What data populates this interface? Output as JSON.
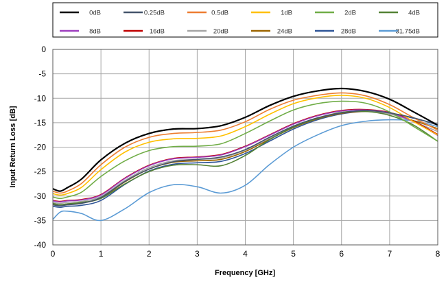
{
  "chart_data": {
    "type": "line",
    "xlabel": "Frequency [GHz]",
    "ylabel": "Input Return Loss [dB]",
    "xlim": [
      0,
      8
    ],
    "ylim": [
      -40,
      0
    ],
    "x_ticks": [
      "0",
      "1",
      "2",
      "3",
      "4",
      "5",
      "6",
      "7",
      "8"
    ],
    "y_ticks": [
      "0",
      "-5",
      "-10",
      "-15",
      "-20",
      "-25",
      "-30",
      "-35",
      "-40"
    ],
    "grid": true,
    "legend_position": "top",
    "series": [
      {
        "name": "0dB",
        "color": "#000000",
        "x": [
          0,
          0.15,
          0.3,
          0.6,
          1,
          1.5,
          2,
          2.5,
          3,
          3.5,
          4,
          4.5,
          5,
          5.5,
          6,
          6.5,
          7,
          7.5,
          8
        ],
        "y": [
          -28.5,
          -29,
          -28.3,
          -26.5,
          -22.6,
          -19.2,
          -17.2,
          -16.3,
          -16.2,
          -15.6,
          -13.9,
          -11.5,
          -9.6,
          -8.5,
          -8.0,
          -8.6,
          -10.2,
          -12.8,
          -15.5
        ]
      },
      {
        "name": "0.25dB",
        "color": "#44546a",
        "x": [
          0,
          0.15,
          0.3,
          0.6,
          1,
          1.5,
          2,
          2.5,
          3,
          3.5,
          4,
          4.5,
          5,
          5.5,
          6,
          6.5,
          7,
          7.5,
          8
        ],
        "y": [
          -31.8,
          -32.0,
          -31.8,
          -31.5,
          -30.3,
          -27.0,
          -24.5,
          -23.0,
          -22.5,
          -22.0,
          -20.5,
          -18.0,
          -15.7,
          -14.0,
          -13.0,
          -12.5,
          -13.0,
          -14.0,
          -15.5
        ]
      },
      {
        "name": "0.5dB",
        "color": "#ed7d31",
        "x": [
          0,
          0.15,
          0.3,
          0.6,
          1,
          1.5,
          2,
          2.5,
          3,
          3.5,
          4,
          4.5,
          5,
          5.5,
          6,
          6.5,
          7,
          7.5,
          8
        ],
        "y": [
          -29.0,
          -29.4,
          -29.0,
          -27.4,
          -23.6,
          -20.0,
          -18.0,
          -17.2,
          -17.0,
          -16.5,
          -14.8,
          -12.3,
          -10.4,
          -9.4,
          -8.9,
          -9.5,
          -11.3,
          -14.0,
          -16.5
        ]
      },
      {
        "name": "1dB",
        "color": "#ffc000",
        "x": [
          0,
          0.15,
          0.3,
          0.6,
          1,
          1.5,
          2,
          2.5,
          3,
          3.5,
          4,
          4.5,
          5,
          5.5,
          6,
          6.5,
          7,
          7.5,
          8
        ],
        "y": [
          -29.5,
          -29.8,
          -29.5,
          -28.2,
          -24.6,
          -21.0,
          -19.0,
          -18.3,
          -18.2,
          -17.7,
          -15.8,
          -13.3,
          -11.1,
          -9.9,
          -9.4,
          -10.0,
          -11.9,
          -14.8,
          -17.5
        ]
      },
      {
        "name": "2dB",
        "color": "#70ad47",
        "x": [
          0,
          0.15,
          0.3,
          0.6,
          1,
          1.5,
          2,
          2.5,
          3,
          3.5,
          4,
          4.5,
          5,
          5.5,
          6,
          6.5,
          7,
          7.5,
          8
        ],
        "y": [
          -30.2,
          -30.5,
          -30.2,
          -29.2,
          -26.0,
          -22.8,
          -20.7,
          -19.9,
          -19.8,
          -19.3,
          -17.2,
          -14.7,
          -12.4,
          -11.1,
          -10.6,
          -11.0,
          -12.8,
          -15.8,
          -18.8
        ]
      },
      {
        "name": "4dB",
        "color": "#548235",
        "x": [
          0,
          0.15,
          0.3,
          0.6,
          1,
          1.5,
          2,
          2.5,
          3,
          3.5,
          4,
          4.5,
          5,
          5.5,
          6,
          6.5,
          7,
          7.5,
          8
        ],
        "y": [
          -31.5,
          -31.8,
          -31.6,
          -31.3,
          -30.5,
          -27.5,
          -25.0,
          -23.7,
          -23.6,
          -23.8,
          -21.7,
          -18.5,
          -15.9,
          -14.1,
          -12.9,
          -12.7,
          -13.5,
          -15.5,
          -18.8
        ]
      },
      {
        "name": "8dB",
        "color": "#9e3fbf",
        "x": [
          0,
          0.15,
          0.3,
          0.6,
          1,
          1.5,
          2,
          2.5,
          3,
          3.5,
          4,
          4.5,
          5,
          5.5,
          6,
          6.5,
          7,
          7.5,
          8
        ],
        "y": [
          -31.0,
          -31.2,
          -31.0,
          -30.8,
          -29.8,
          -26.4,
          -23.8,
          -22.4,
          -22.1,
          -21.6,
          -19.9,
          -17.6,
          -15.3,
          -13.6,
          -12.6,
          -12.4,
          -13.0,
          -14.8,
          -17.6
        ]
      },
      {
        "name": "16dB",
        "color": "#c00000",
        "x": [
          0,
          0.15,
          0.3,
          0.6,
          1,
          1.5,
          2,
          2.5,
          3,
          3.5,
          4,
          4.5,
          5,
          5.5,
          6,
          6.5,
          7,
          7.5,
          8
        ],
        "y": [
          -30.9,
          -31.1,
          -30.9,
          -30.7,
          -29.7,
          -26.3,
          -23.7,
          -22.3,
          -22.0,
          -21.5,
          -19.8,
          -17.5,
          -15.2,
          -13.5,
          -12.5,
          -12.3,
          -12.9,
          -14.7,
          -17.4
        ]
      },
      {
        "name": "20dB",
        "color": "#a5a5a5",
        "x": [
          0,
          0.15,
          0.3,
          0.6,
          1,
          1.5,
          2,
          2.5,
          3,
          3.5,
          4,
          4.5,
          5,
          5.5,
          6,
          6.5,
          7,
          7.5,
          8
        ],
        "y": [
          -31.3,
          -31.5,
          -31.3,
          -31.1,
          -30.1,
          -26.8,
          -24.2,
          -22.8,
          -22.5,
          -22.2,
          -20.6,
          -18.2,
          -15.8,
          -14.0,
          -12.9,
          -12.6,
          -13.2,
          -14.8,
          -16.8
        ]
      },
      {
        "name": "24dB",
        "color": "#9c6500",
        "x": [
          0,
          0.15,
          0.3,
          0.6,
          1,
          1.5,
          2,
          2.5,
          3,
          3.5,
          4,
          4.5,
          5,
          5.5,
          6,
          6.5,
          7,
          7.5,
          8
        ],
        "y": [
          -31.6,
          -31.8,
          -31.6,
          -31.4,
          -30.4,
          -27.1,
          -24.5,
          -23.1,
          -22.8,
          -22.5,
          -20.9,
          -18.4,
          -16.0,
          -14.2,
          -13.1,
          -12.7,
          -13.2,
          -14.6,
          -16.2
        ]
      },
      {
        "name": "28dB",
        "color": "#2f5597",
        "x": [
          0,
          0.15,
          0.3,
          0.6,
          1,
          1.5,
          2,
          2.5,
          3,
          3.5,
          4,
          4.5,
          5,
          5.5,
          6,
          6.5,
          7,
          7.5,
          8
        ],
        "y": [
          -32.1,
          -32.3,
          -32.1,
          -31.9,
          -30.9,
          -27.6,
          -24.9,
          -23.5,
          -23.2,
          -22.9,
          -21.3,
          -18.8,
          -16.3,
          -14.4,
          -13.2,
          -12.7,
          -13.0,
          -14.1,
          -15.3
        ]
      },
      {
        "name": "31.75dB",
        "color": "#5b9bd5",
        "x": [
          0,
          0.15,
          0.3,
          0.6,
          1,
          1.5,
          2,
          2.5,
          3,
          3.5,
          4,
          4.5,
          5,
          5.5,
          6,
          6.5,
          7,
          7.5,
          8
        ],
        "y": [
          -34.8,
          -33.3,
          -33.1,
          -33.6,
          -35.0,
          -32.6,
          -29.3,
          -27.7,
          -28.1,
          -29.4,
          -27.8,
          -23.6,
          -20.0,
          -17.5,
          -15.6,
          -14.7,
          -14.4,
          -14.6,
          -15.8
        ]
      }
    ]
  }
}
